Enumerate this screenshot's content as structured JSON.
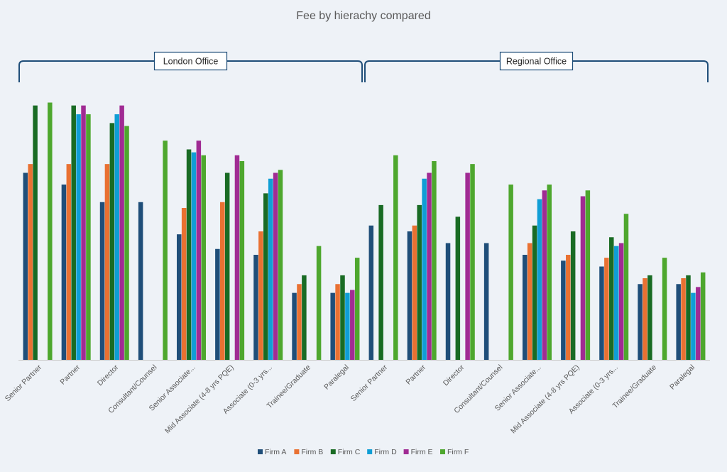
{
  "chart_data": {
    "type": "bar",
    "title": "Fee by hierachy compared",
    "xlabel": "",
    "ylabel": "",
    "ylim": [
      0,
      100
    ],
    "grid": false,
    "legend_position": "bottom",
    "groups": [
      {
        "name": "London Office"
      },
      {
        "name": "Regional Office"
      }
    ],
    "categories": [
      "Senior Partner",
      "Partner",
      "Director",
      "Consultant/Counsel",
      "Senior Associate...",
      "Mid Associate (4-8 yrs PQE)",
      "Associate (0-3 yrs...",
      "Trainee/Graduate",
      "Paralegal",
      "Senior Partner",
      "Partner",
      "Director",
      "Consultant/Counsel",
      "Senior Associate...",
      "Mid Associate (4-8 yrs PQE)",
      "Associate (0-3 yrs...",
      "Trainee/Graduate",
      "Paralegal"
    ],
    "category_group": [
      0,
      0,
      0,
      0,
      0,
      0,
      0,
      0,
      0,
      1,
      1,
      1,
      1,
      1,
      1,
      1,
      1,
      1
    ],
    "series": [
      {
        "name": "Firm A",
        "color": "#1f4e79",
        "values": [
          64,
          60,
          54,
          54,
          43,
          38,
          36,
          23,
          23,
          46,
          44,
          40,
          40,
          36,
          34,
          32,
          26,
          26
        ]
      },
      {
        "name": "Firm B",
        "color": "#e97132",
        "values": [
          67,
          67,
          67,
          null,
          52,
          54,
          44,
          26,
          26,
          null,
          46,
          null,
          null,
          40,
          36,
          35,
          28,
          28
        ]
      },
      {
        "name": "Firm C",
        "color": "#196b24",
        "values": [
          87,
          87,
          81,
          null,
          72,
          64,
          57,
          29,
          29,
          53,
          53,
          49,
          null,
          46,
          44,
          42,
          29,
          29
        ]
      },
      {
        "name": "Firm D",
        "color": "#0f9ed5",
        "values": [
          null,
          84,
          84,
          null,
          71,
          null,
          62,
          null,
          23,
          null,
          62,
          null,
          null,
          55,
          null,
          39,
          null,
          23
        ]
      },
      {
        "name": "Firm E",
        "color": "#a02b93",
        "values": [
          null,
          87,
          87,
          null,
          75,
          70,
          64,
          null,
          24,
          null,
          64,
          64,
          null,
          58,
          56,
          40,
          null,
          25
        ]
      },
      {
        "name": "Firm F",
        "color": "#4ea72e",
        "values": [
          88,
          84,
          80,
          75,
          70,
          68,
          65,
          39,
          35,
          70,
          68,
          67,
          60,
          60,
          58,
          50,
          35,
          30
        ]
      }
    ]
  }
}
